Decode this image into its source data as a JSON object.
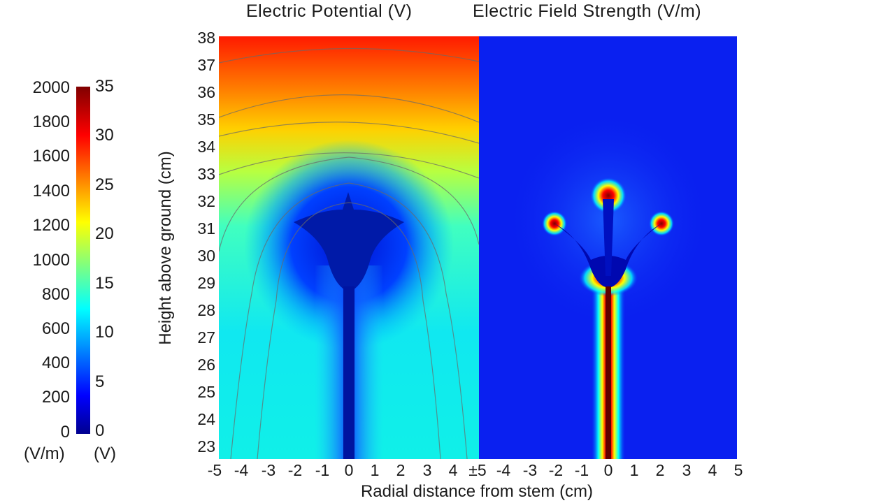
{
  "chart_data": [
    {
      "type": "heatmap",
      "title": "Electric Potential (V)",
      "xlabel": "Radial distance from stem (cm)",
      "ylabel": "Height above ground (cm)",
      "x_ticks": [
        "-5",
        "-4",
        "-3",
        "-2",
        "-1",
        "0",
        "1",
        "2",
        "3",
        "4"
      ],
      "y_ticks": [
        "38",
        "37",
        "36",
        "35",
        "34",
        "33",
        "32",
        "31",
        "30",
        "29",
        "28",
        "27",
        "26",
        "25",
        "24",
        "23"
      ],
      "xlim": [
        -5,
        5
      ],
      "ylim": [
        22.5,
        38
      ],
      "colorbar": {
        "ticks": [
          "35",
          "30",
          "25",
          "20",
          "15",
          "10",
          "5",
          "0"
        ],
        "unit": "(V)",
        "range": [
          0,
          35
        ]
      },
      "contours": true
    },
    {
      "type": "heatmap",
      "title": "Electric Field Strength (V/m)",
      "x_ticks": [
        "±5",
        "-4",
        "-3",
        "-2",
        "-1",
        "0",
        "1",
        "2",
        "3",
        "4",
        "5"
      ],
      "xlim": [
        -5,
        5
      ],
      "ylim": [
        22.5,
        38
      ],
      "colorbar": {
        "ticks": [
          "2000",
          "1800",
          "1600",
          "1400",
          "1200",
          "1000",
          "800",
          "600",
          "400",
          "200",
          "0"
        ],
        "unit": "(V/m)",
        "range": [
          0,
          2000
        ]
      }
    }
  ]
}
